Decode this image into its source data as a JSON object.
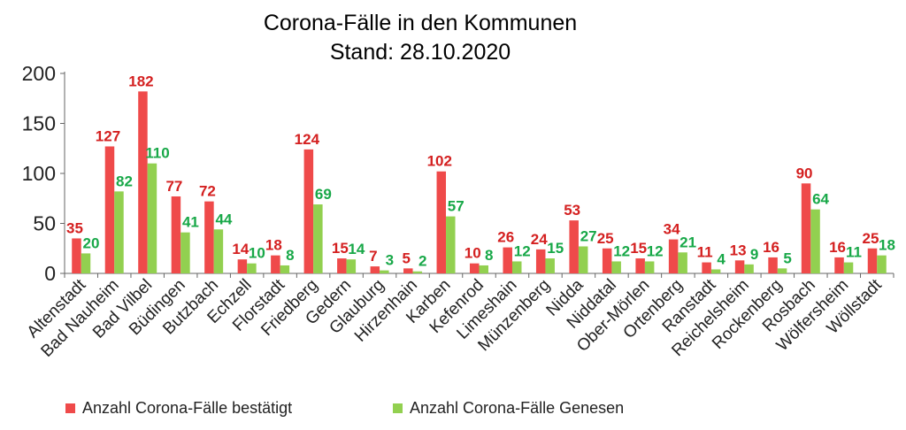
{
  "chart_data": {
    "type": "bar",
    "title": "Corona-Fälle in den Kommunen",
    "subtitle": "Stand: 28.10.2020",
    "xlabel": "",
    "ylabel": "",
    "ylim": [
      0,
      200
    ],
    "yticks": [
      0,
      50,
      100,
      150,
      200
    ],
    "grid": false,
    "legend_position": "bottom",
    "categories": [
      "Altenstadt",
      "Bad Nauheim",
      "Bad Vilbel",
      "Büdingen",
      "Butzbach",
      "Echzell",
      "Florstadt",
      "Friedberg",
      "Gedern",
      "Glauburg",
      "Hirzenhain",
      "Karben",
      "Kefenrod",
      "Limeshain",
      "Münzenberg",
      "Nidda",
      "Niddatal",
      "Ober-Mörlen",
      "Ortenberg",
      "Ranstadt",
      "Reichelsheim",
      "Rockenberg",
      "Rosbach",
      "Wölfersheim",
      "Wöllstadt"
    ],
    "series": [
      {
        "name": "Anzahl Corona-Fälle bestätigt",
        "color": "#ef4a4a",
        "label_color": "#d42020",
        "values": [
          35,
          127,
          182,
          77,
          72,
          14,
          18,
          124,
          15,
          7,
          5,
          102,
          10,
          26,
          24,
          53,
          25,
          15,
          34,
          11,
          13,
          16,
          90,
          16,
          25
        ]
      },
      {
        "name": "Anzahl Corona-Fälle Genesen",
        "color": "#92d050",
        "label_color": "#18a848",
        "values": [
          20,
          82,
          110,
          41,
          44,
          10,
          8,
          69,
          14,
          3,
          2,
          57,
          8,
          12,
          15,
          27,
          12,
          12,
          21,
          4,
          9,
          5,
          64,
          11,
          18
        ]
      }
    ]
  }
}
